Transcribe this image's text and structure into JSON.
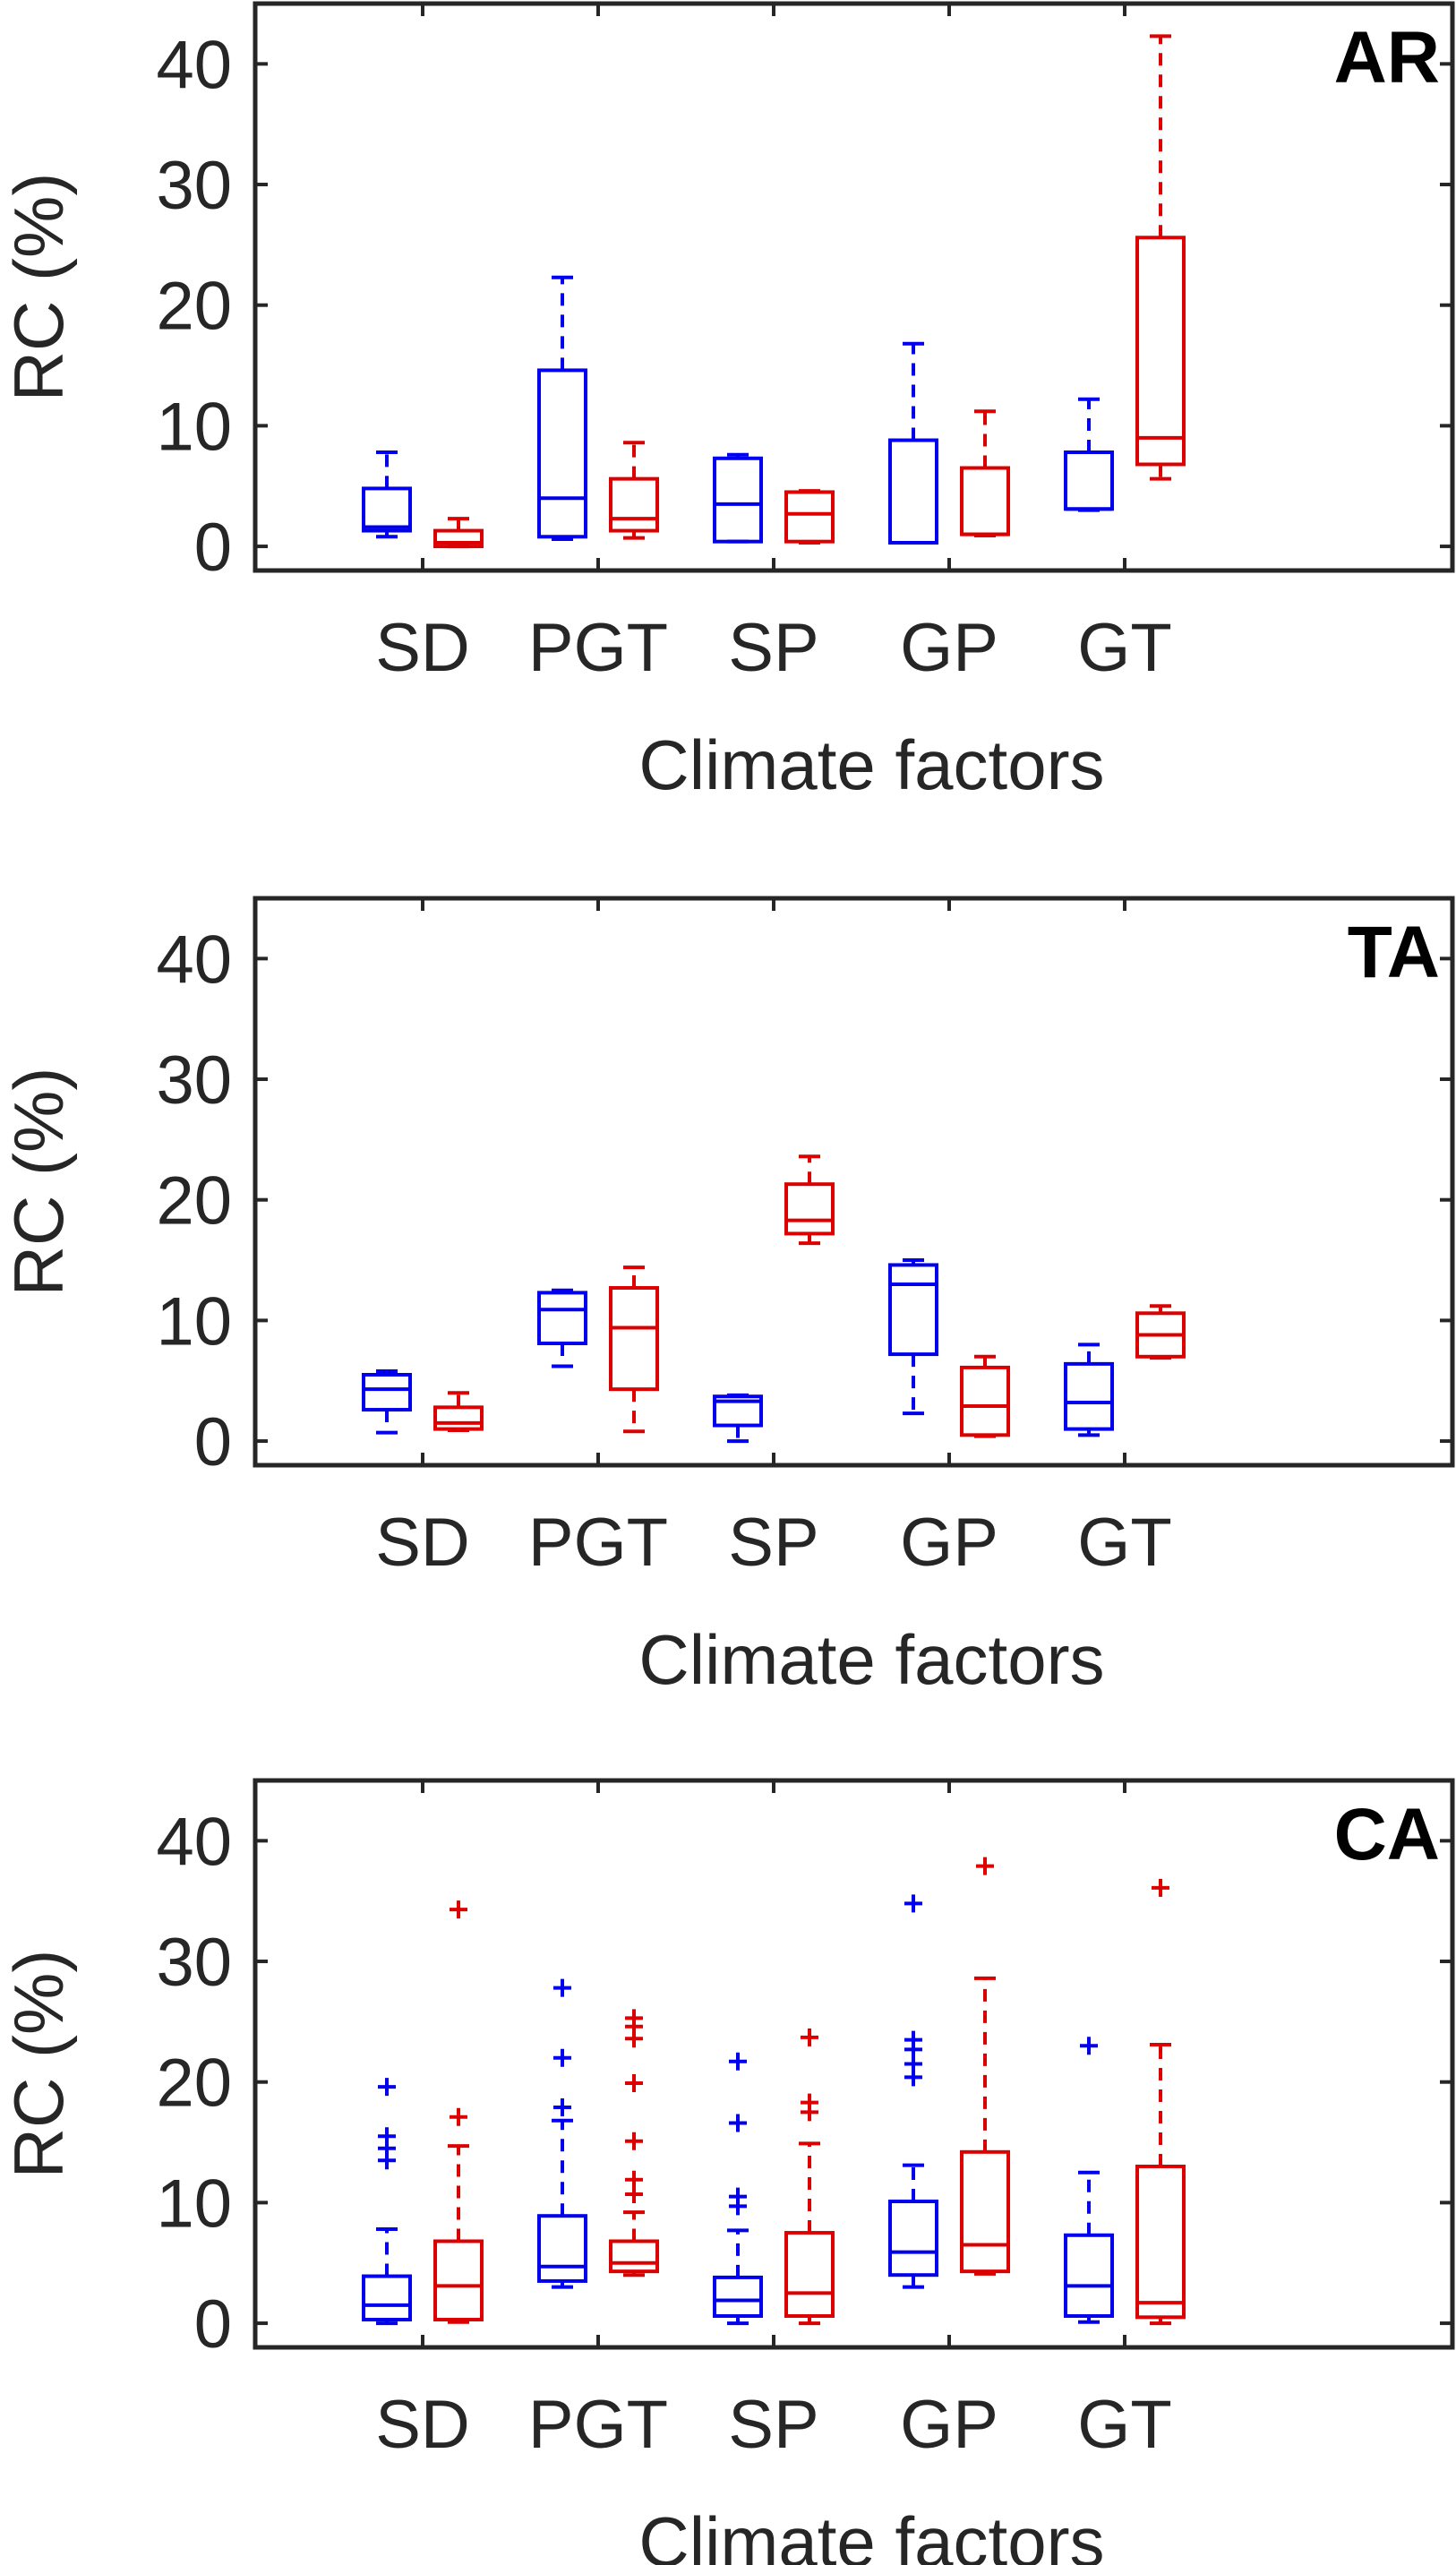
{
  "colors": {
    "group1": "#0000ee",
    "group2": "#dd0000",
    "axis": "#262626"
  },
  "chart_data": [
    {
      "type": "box",
      "panel_label": "AR",
      "xlabel": "Climate factors",
      "ylabel": "RC (%)",
      "ylim": [
        -2,
        45
      ],
      "yticks": [
        "0",
        "10",
        "20",
        "30",
        "40"
      ],
      "grid": false,
      "categories": [
        "SD",
        "PGT",
        "SP",
        "GP",
        "GT"
      ],
      "series": [
        {
          "color": "blue",
          "boxes": [
            {
              "min": 0.8,
              "q1": 1.3,
              "median": 1.6,
              "q3": 4.8,
              "max": 7.8,
              "outliers": []
            },
            {
              "min": 0.6,
              "q1": 0.8,
              "median": 4.0,
              "q3": 14.6,
              "max": 22.3,
              "outliers": []
            },
            {
              "min": 0.4,
              "q1": 0.4,
              "median": 3.5,
              "q3": 7.3,
              "max": 7.6,
              "outliers": []
            },
            {
              "min": 0.3,
              "q1": 0.3,
              "median": 0.3,
              "q3": 8.8,
              "max": 16.8,
              "outliers": []
            },
            {
              "min": 3.0,
              "q1": 3.1,
              "median": 3.1,
              "q3": 7.8,
              "max": 12.2,
              "outliers": []
            }
          ]
        },
        {
          "color": "red",
          "boxes": [
            {
              "min": 0.0,
              "q1": 0.0,
              "median": 0.3,
              "q3": 1.3,
              "max": 2.3,
              "outliers": []
            },
            {
              "min": 0.7,
              "q1": 1.3,
              "median": 2.3,
              "q3": 5.6,
              "max": 8.6,
              "outliers": []
            },
            {
              "min": 0.3,
              "q1": 0.4,
              "median": 2.7,
              "q3": 4.5,
              "max": 4.6,
              "outliers": []
            },
            {
              "min": 0.9,
              "q1": 1.0,
              "median": 1.0,
              "q3": 6.5,
              "max": 11.2,
              "outliers": []
            },
            {
              "min": 5.6,
              "q1": 6.8,
              "median": 9.0,
              "q3": 25.6,
              "max": 42.3,
              "outliers": []
            }
          ]
        }
      ]
    },
    {
      "type": "box",
      "panel_label": "TA",
      "xlabel": "Climate factors",
      "ylabel": "RC (%)",
      "ylim": [
        -2,
        45
      ],
      "yticks": [
        "0",
        "10",
        "20",
        "30",
        "40"
      ],
      "grid": false,
      "categories": [
        "SD",
        "PGT",
        "SP",
        "GP",
        "GT"
      ],
      "series": [
        {
          "color": "blue",
          "boxes": [
            {
              "min": 0.7,
              "q1": 2.6,
              "median": 4.3,
              "q3": 5.5,
              "max": 5.8,
              "outliers": []
            },
            {
              "min": 6.2,
              "q1": 8.1,
              "median": 10.9,
              "q3": 12.3,
              "max": 12.5,
              "outliers": []
            },
            {
              "min": 0.0,
              "q1": 1.3,
              "median": 3.3,
              "q3": 3.7,
              "max": 3.8,
              "outliers": []
            },
            {
              "min": 2.3,
              "q1": 7.2,
              "median": 13.0,
              "q3": 14.6,
              "max": 15.0,
              "outliers": []
            },
            {
              "min": 0.5,
              "q1": 1.0,
              "median": 3.2,
              "q3": 6.4,
              "max": 8.0,
              "outliers": []
            }
          ]
        },
        {
          "color": "red",
          "boxes": [
            {
              "min": 0.9,
              "q1": 1.0,
              "median": 1.5,
              "q3": 2.8,
              "max": 4.0,
              "outliers": []
            },
            {
              "min": 0.8,
              "q1": 4.3,
              "median": 9.4,
              "q3": 12.7,
              "max": 14.4,
              "outliers": []
            },
            {
              "min": 16.4,
              "q1": 17.2,
              "median": 18.3,
              "q3": 21.3,
              "max": 23.6,
              "outliers": []
            },
            {
              "min": 0.4,
              "q1": 0.5,
              "median": 2.9,
              "q3": 6.1,
              "max": 7.0,
              "outliers": []
            },
            {
              "min": 6.9,
              "q1": 7.0,
              "median": 8.8,
              "q3": 10.6,
              "max": 11.2,
              "outliers": []
            }
          ]
        }
      ]
    },
    {
      "type": "box",
      "panel_label": "CA",
      "xlabel": "Climate factors",
      "ylabel": "RC (%)",
      "ylim": [
        -2,
        45
      ],
      "yticks": [
        "0",
        "10",
        "20",
        "30",
        "40"
      ],
      "grid": false,
      "categories": [
        "SD",
        "PGT",
        "SP",
        "GP",
        "GT"
      ],
      "series": [
        {
          "color": "blue",
          "boxes": [
            {
              "min": 0.0,
              "q1": 0.3,
              "median": 1.5,
              "q3": 3.9,
              "max": 7.8,
              "outliers": [
                13.5,
                14.5,
                15.5,
                19.6
              ]
            },
            {
              "min": 3.0,
              "q1": 3.5,
              "median": 4.7,
              "q3": 8.9,
              "max": 16.8,
              "outliers": [
                17.9,
                22.0,
                27.8
              ]
            },
            {
              "min": 0.0,
              "q1": 0.6,
              "median": 1.9,
              "q3": 3.8,
              "max": 7.7,
              "outliers": [
                9.7,
                10.5,
                16.6,
                21.7
              ]
            },
            {
              "min": 3.0,
              "q1": 4.0,
              "median": 5.9,
              "q3": 10.1,
              "max": 13.1,
              "outliers": [
                20.4,
                21.5,
                22.7,
                23.5,
                34.8
              ]
            },
            {
              "min": 0.1,
              "q1": 0.6,
              "median": 3.1,
              "q3": 7.3,
              "max": 12.5,
              "outliers": [
                23.0
              ]
            }
          ]
        },
        {
          "color": "red",
          "boxes": [
            {
              "min": 0.1,
              "q1": 0.3,
              "median": 3.1,
              "q3": 6.8,
              "max": 14.7,
              "outliers": [
                17.1,
                34.3
              ]
            },
            {
              "min": 4.0,
              "q1": 4.3,
              "median": 5.0,
              "q3": 6.8,
              "max": 9.2,
              "outliers": [
                10.7,
                11.9,
                15.1,
                19.9,
                23.6,
                24.6,
                25.3
              ]
            },
            {
              "min": 0.0,
              "q1": 0.6,
              "median": 2.5,
              "q3": 7.5,
              "max": 14.9,
              "outliers": [
                17.5,
                18.3,
                23.7
              ]
            },
            {
              "min": 4.1,
              "q1": 4.3,
              "median": 6.5,
              "q3": 14.2,
              "max": 28.6,
              "outliers": [
                37.9
              ]
            },
            {
              "min": 0.0,
              "q1": 0.5,
              "median": 1.7,
              "q3": 13.0,
              "max": 23.1,
              "outliers": [
                36.1
              ]
            }
          ]
        }
      ]
    }
  ]
}
